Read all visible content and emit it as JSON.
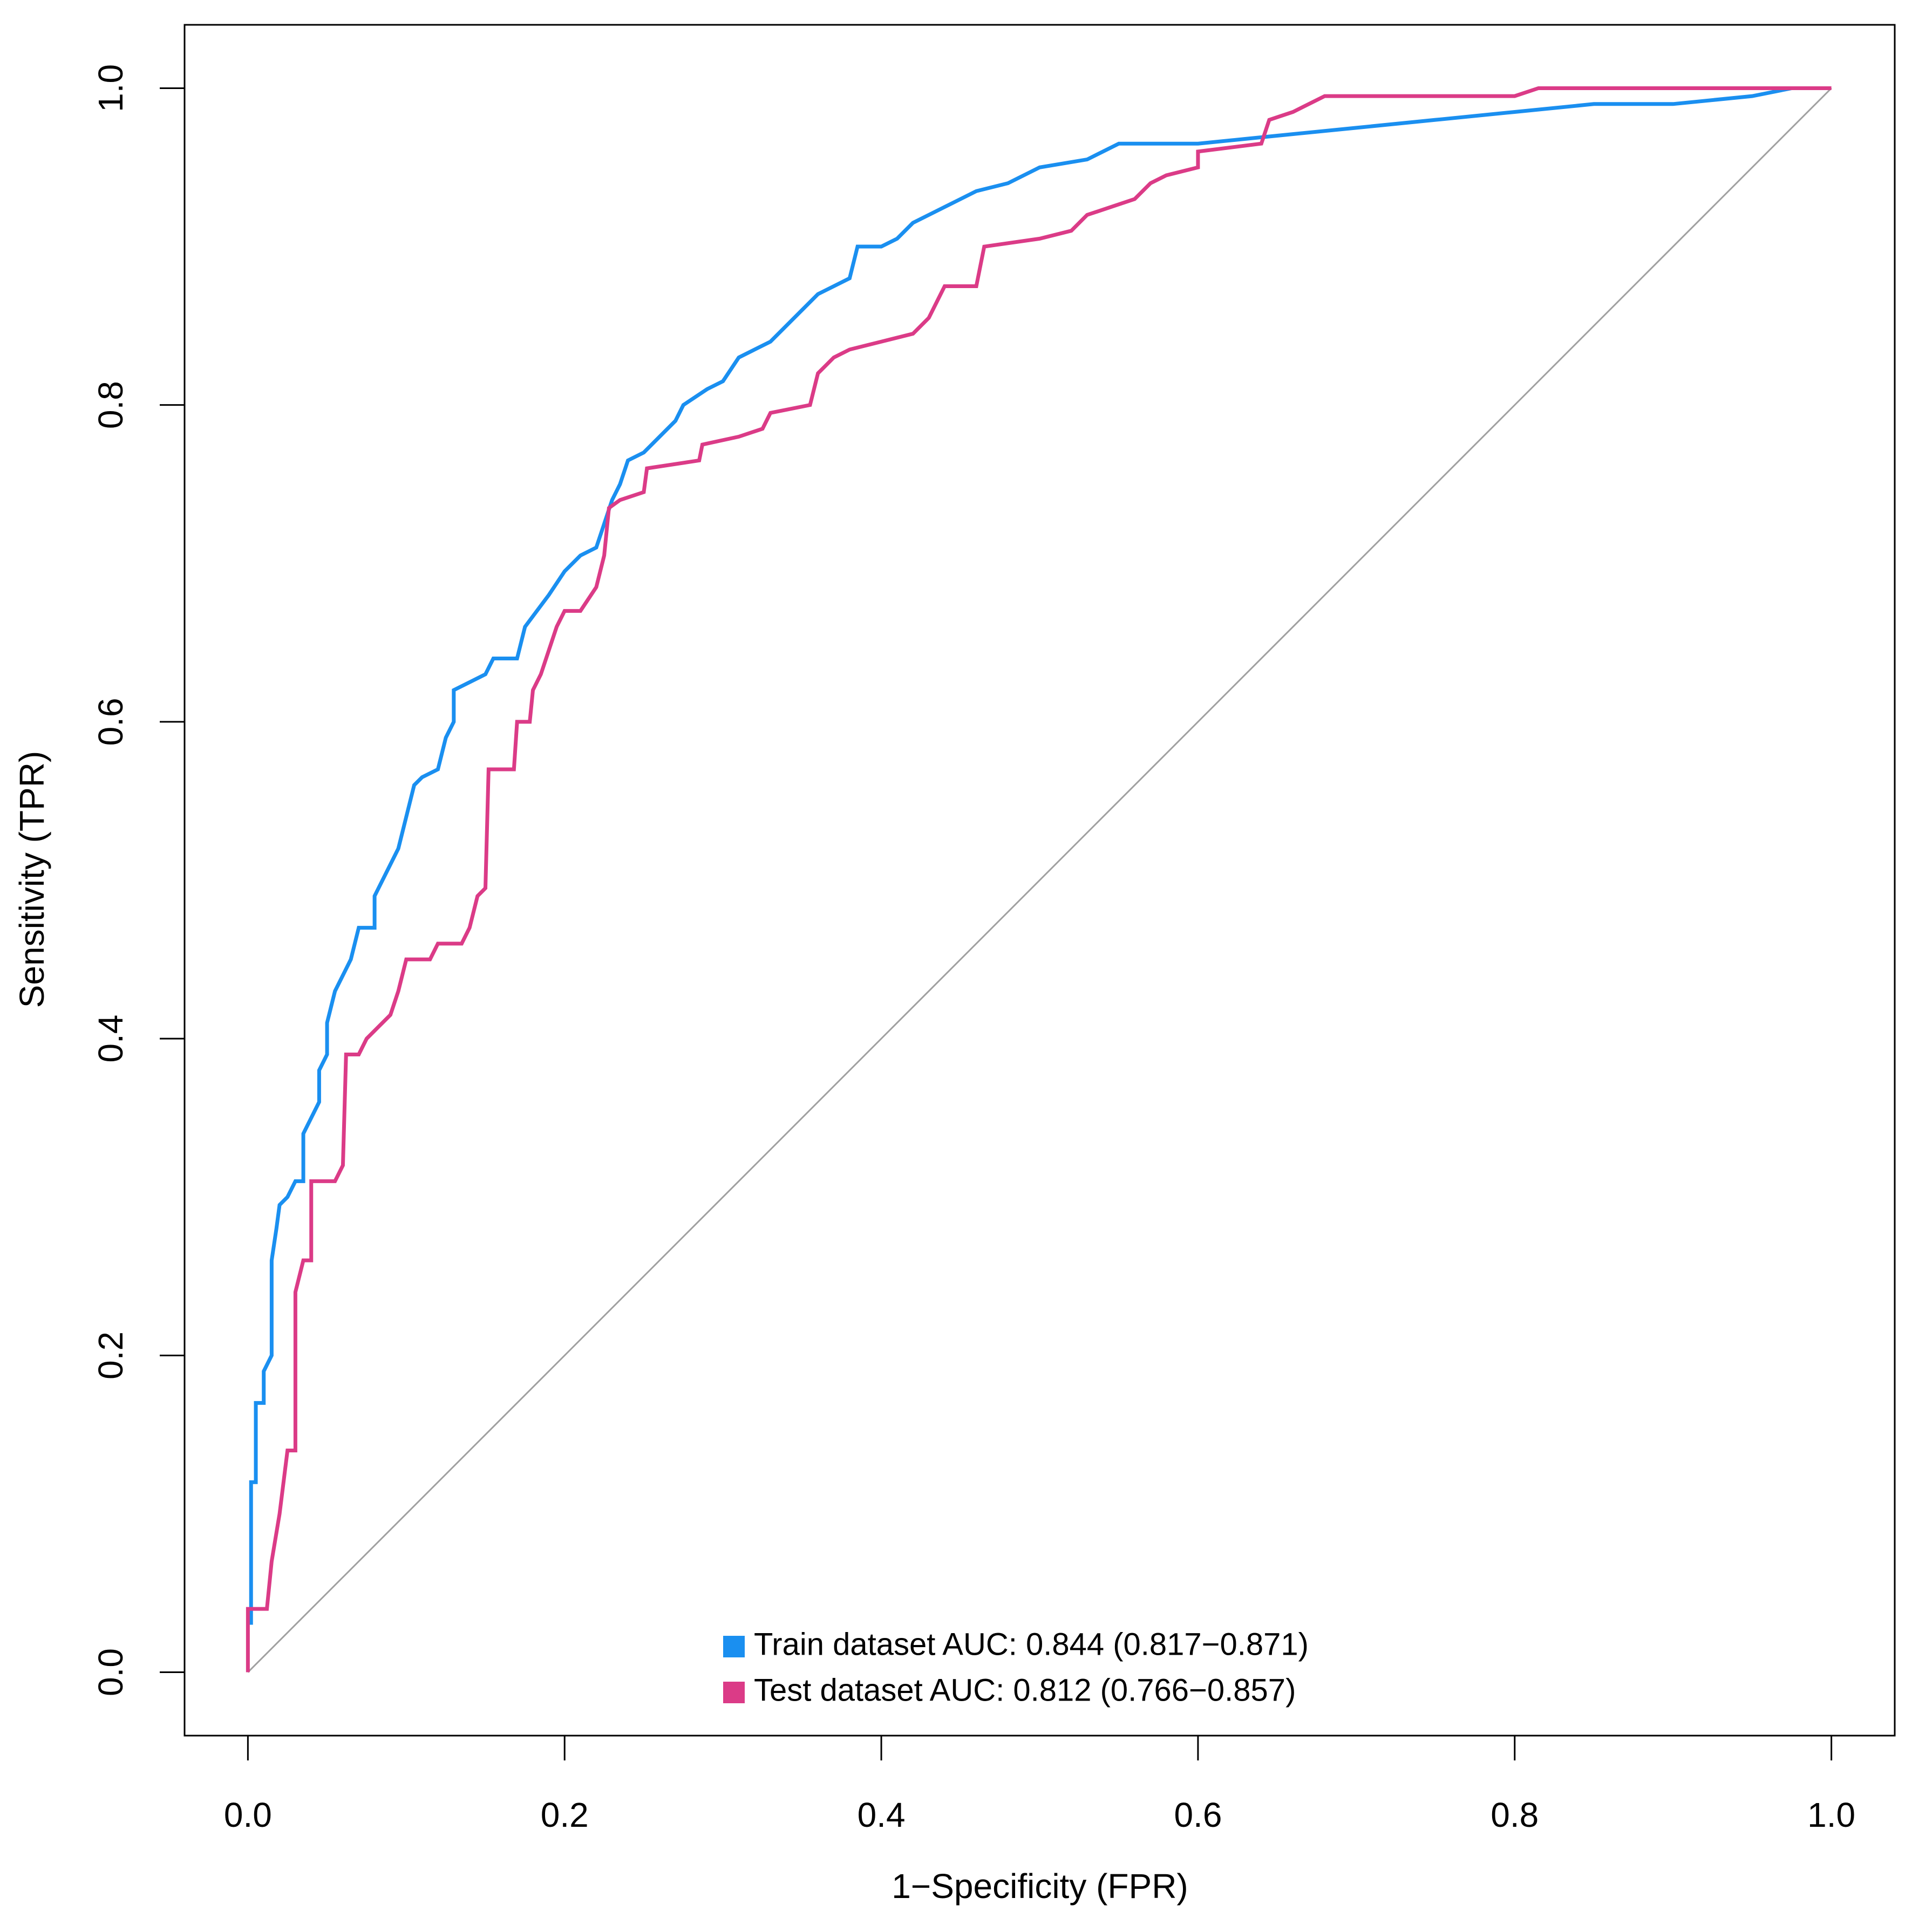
{
  "chart_data": {
    "type": "line",
    "xlabel": "1−Specificity (FPR)",
    "ylabel": "Sensitivity (TPR)",
    "xlim": [
      -0.04,
      1.04
    ],
    "ylim": [
      -0.04,
      1.04
    ],
    "xticks": [
      {
        "value": 0,
        "label": "0.0"
      },
      0.2,
      0.4,
      0.6,
      0.8,
      {
        "value": 1,
        "label": "1.0"
      }
    ],
    "yticks": [
      {
        "value": 0,
        "label": "0.0"
      },
      0.2,
      0.4,
      0.6,
      0.8,
      {
        "value": 1,
        "label": "1.0"
      }
    ],
    "legend": "bottom",
    "series": [
      {
        "name": "Train dataset AUC: 0.844 (0.817−0.871)",
        "color": "#1a8ff0",
        "x": [
          0.002,
          0.002,
          0.005,
          0.005,
          0.01,
          0.01,
          0.015,
          0.015,
          0.018,
          0.02,
          0.025,
          0.03,
          0.035,
          0.035,
          0.04,
          0.045,
          0.045,
          0.05,
          0.05,
          0.055,
          0.06,
          0.065,
          0.07,
          0.08,
          0.08,
          0.09,
          0.095,
          0.1,
          0.105,
          0.11,
          0.12,
          0.125,
          0.13,
          0.13,
          0.14,
          0.15,
          0.155,
          0.17,
          0.175,
          0.19,
          0.2,
          0.21,
          0.22,
          0.225,
          0.23,
          0.235,
          0.24,
          0.25,
          0.26,
          0.27,
          0.275,
          0.29,
          0.3,
          0.31,
          0.32,
          0.33,
          0.34,
          0.35,
          0.36,
          0.37,
          0.38,
          0.385,
          0.4,
          0.41,
          0.42,
          0.44,
          0.46,
          0.48,
          0.5,
          0.53,
          0.55,
          0.6,
          0.65,
          0.7,
          0.75,
          0.8,
          0.85,
          0.9,
          0.95,
          0.975
        ],
        "values": [
          0.03,
          0.12,
          0.12,
          0.17,
          0.17,
          0.19,
          0.2,
          0.26,
          0.28,
          0.295,
          0.3,
          0.31,
          0.31,
          0.34,
          0.35,
          0.36,
          0.38,
          0.39,
          0.41,
          0.43,
          0.44,
          0.45,
          0.47,
          0.47,
          0.49,
          0.51,
          0.52,
          0.54,
          0.56,
          0.565,
          0.57,
          0.59,
          0.6,
          0.62,
          0.625,
          0.63,
          0.64,
          0.64,
          0.66,
          0.68,
          0.695,
          0.705,
          0.71,
          0.725,
          0.74,
          0.75,
          0.765,
          0.77,
          0.78,
          0.79,
          0.8,
          0.81,
          0.815,
          0.83,
          0.835,
          0.84,
          0.85,
          0.86,
          0.87,
          0.875,
          0.88,
          0.9,
          0.9,
          0.905,
          0.915,
          0.925,
          0.935,
          0.94,
          0.95,
          0.955,
          0.965,
          0.965,
          0.97,
          0.975,
          0.98,
          0.985,
          0.99,
          0.99,
          0.995,
          1.0
        ]
      },
      {
        "name": "Test dataset AUC: 0.812 (0.766−0.857)",
        "color": "#db3b87",
        "x": [
          0,
          0,
          0.012,
          0.015,
          0.02,
          0.025,
          0.03,
          0.03,
          0.035,
          0.04,
          0.04,
          0.055,
          0.06,
          0.062,
          0.07,
          0.075,
          0.085,
          0.09,
          0.095,
          0.1,
          0.115,
          0.12,
          0.135,
          0.14,
          0.145,
          0.15,
          0.152,
          0.168,
          0.17,
          0.178,
          0.18,
          0.185,
          0.19,
          0.195,
          0.2,
          0.21,
          0.22,
          0.225,
          0.228,
          0.235,
          0.25,
          0.252,
          0.285,
          0.287,
          0.31,
          0.325,
          0.33,
          0.355,
          0.36,
          0.37,
          0.38,
          0.4,
          0.42,
          0.43,
          0.435,
          0.44,
          0.46,
          0.465,
          0.5,
          0.52,
          0.53,
          0.56,
          0.57,
          0.58,
          0.6,
          0.6,
          0.64,
          0.645,
          0.66,
          0.68,
          0.8,
          0.815,
          1
        ],
        "values": [
          0,
          0.04,
          0.04,
          0.07,
          0.1,
          0.14,
          0.14,
          0.24,
          0.26,
          0.26,
          0.31,
          0.31,
          0.32,
          0.39,
          0.39,
          0.4,
          0.41,
          0.415,
          0.43,
          0.45,
          0.45,
          0.46,
          0.46,
          0.47,
          0.49,
          0.495,
          0.57,
          0.57,
          0.6,
          0.6,
          0.62,
          0.63,
          0.645,
          0.66,
          0.67,
          0.67,
          0.685,
          0.705,
          0.735,
          0.74,
          0.745,
          0.76,
          0.765,
          0.775,
          0.78,
          0.785,
          0.795,
          0.8,
          0.82,
          0.83,
          0.835,
          0.84,
          0.845,
          0.855,
          0.865,
          0.875,
          0.875,
          0.9,
          0.905,
          0.91,
          0.92,
          0.93,
          0.94,
          0.945,
          0.95,
          0.96,
          0.965,
          0.98,
          0.985,
          0.995,
          0.995,
          1.0,
          1.0
        ]
      }
    ]
  }
}
